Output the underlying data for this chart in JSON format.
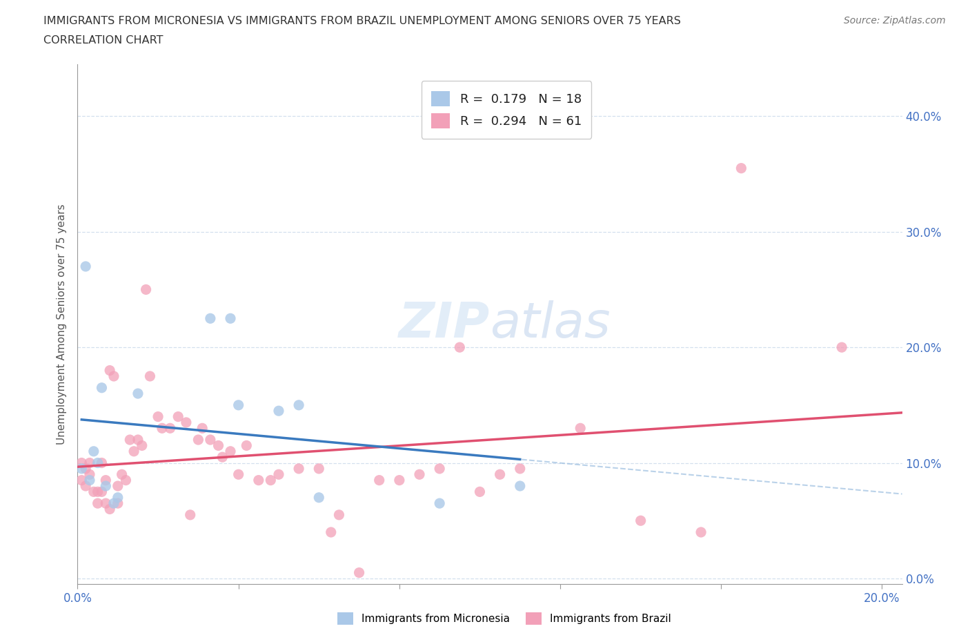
{
  "title_line1": "IMMIGRANTS FROM MICRONESIA VS IMMIGRANTS FROM BRAZIL UNEMPLOYMENT AMONG SENIORS OVER 75 YEARS",
  "title_line2": "CORRELATION CHART",
  "source_text": "Source: ZipAtlas.com",
  "ylabel": "Unemployment Among Seniors over 75 years",
  "xlim": [
    0.0,
    0.205
  ],
  "ylim": [
    -0.005,
    0.445
  ],
  "xtick_positions": [
    0.0,
    0.04,
    0.08,
    0.12,
    0.16,
    0.2
  ],
  "ytick_positions": [
    0.0,
    0.1,
    0.2,
    0.3,
    0.4
  ],
  "ytick_labels_right": [
    "0.0%",
    "10.0%",
    "20.0%",
    "30.0%",
    "40.0%"
  ],
  "micronesia_color": "#aac8e8",
  "brazil_color": "#f2a0b8",
  "micronesia_line_color": "#3a7abf",
  "brazil_line_color": "#e05070",
  "micronesia_dash_color": "#9dbfe0",
  "r_micronesia": 0.179,
  "n_micronesia": 18,
  "r_brazil": 0.294,
  "n_brazil": 61,
  "watermark": "ZIPatlas",
  "micronesia_x": [
    0.001,
    0.002,
    0.003,
    0.004,
    0.005,
    0.006,
    0.007,
    0.009,
    0.01,
    0.015,
    0.033,
    0.038,
    0.04,
    0.05,
    0.055,
    0.06,
    0.09,
    0.11
  ],
  "micronesia_y": [
    0.095,
    0.27,
    0.085,
    0.11,
    0.1,
    0.165,
    0.08,
    0.065,
    0.07,
    0.16,
    0.225,
    0.225,
    0.15,
    0.145,
    0.15,
    0.07,
    0.065,
    0.08
  ],
  "brazil_x": [
    0.001,
    0.001,
    0.002,
    0.002,
    0.003,
    0.003,
    0.004,
    0.005,
    0.005,
    0.006,
    0.006,
    0.007,
    0.007,
    0.008,
    0.008,
    0.009,
    0.01,
    0.01,
    0.011,
    0.012,
    0.013,
    0.014,
    0.015,
    0.016,
    0.017,
    0.018,
    0.02,
    0.021,
    0.023,
    0.025,
    0.027,
    0.028,
    0.03,
    0.031,
    0.033,
    0.035,
    0.036,
    0.038,
    0.04,
    0.042,
    0.045,
    0.048,
    0.05,
    0.055,
    0.06,
    0.063,
    0.065,
    0.07,
    0.075,
    0.08,
    0.085,
    0.09,
    0.095,
    0.1,
    0.105,
    0.11,
    0.125,
    0.14,
    0.155,
    0.165,
    0.19
  ],
  "brazil_y": [
    0.1,
    0.085,
    0.095,
    0.08,
    0.1,
    0.09,
    0.075,
    0.065,
    0.075,
    0.1,
    0.075,
    0.085,
    0.065,
    0.06,
    0.18,
    0.175,
    0.065,
    0.08,
    0.09,
    0.085,
    0.12,
    0.11,
    0.12,
    0.115,
    0.25,
    0.175,
    0.14,
    0.13,
    0.13,
    0.14,
    0.135,
    0.055,
    0.12,
    0.13,
    0.12,
    0.115,
    0.105,
    0.11,
    0.09,
    0.115,
    0.085,
    0.085,
    0.09,
    0.095,
    0.095,
    0.04,
    0.055,
    0.005,
    0.085,
    0.085,
    0.09,
    0.095,
    0.2,
    0.075,
    0.09,
    0.095,
    0.13,
    0.05,
    0.04,
    0.355,
    0.2
  ]
}
